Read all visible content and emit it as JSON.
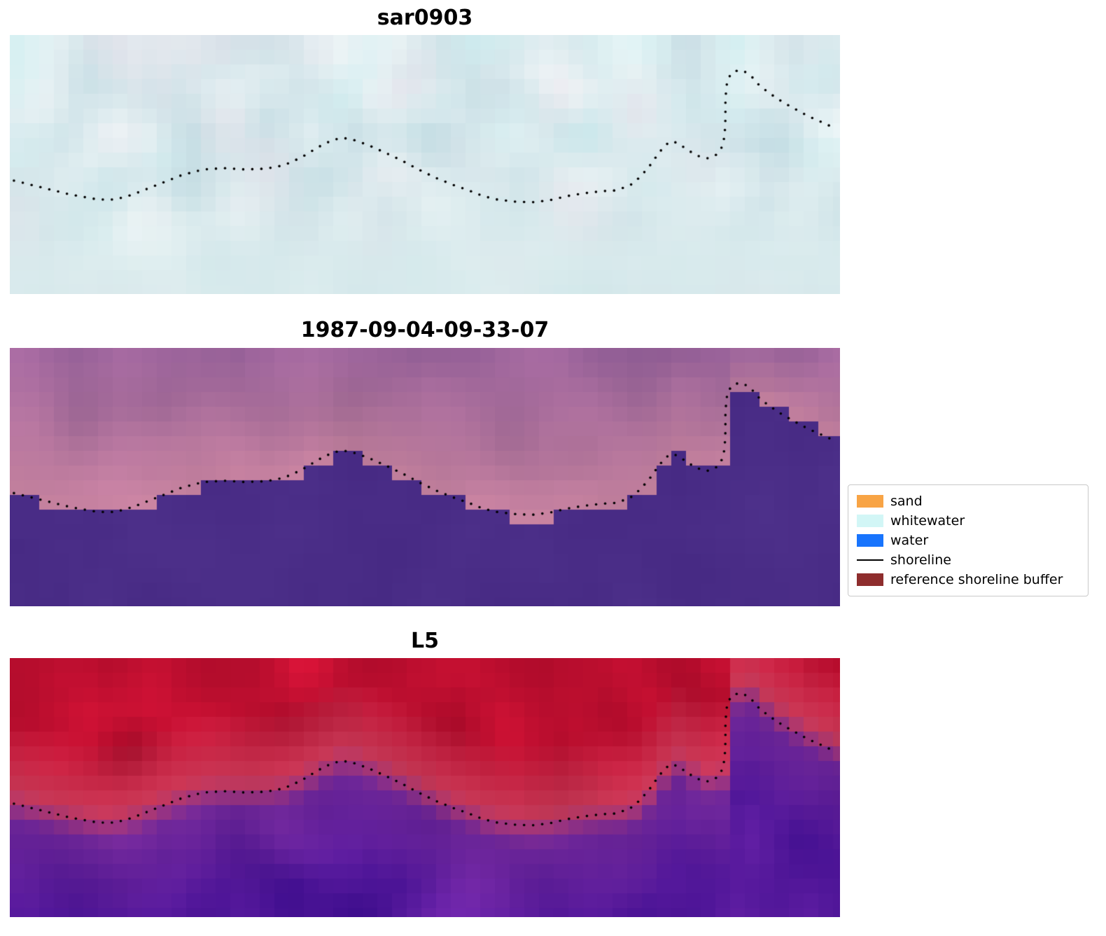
{
  "panels": [
    {
      "title": "sar0903"
    },
    {
      "title": "1987-09-04-09-33-07"
    },
    {
      "title": "L5"
    }
  ],
  "legend": {
    "items": [
      {
        "label": "sand",
        "color": "#f8a445",
        "kind": "patch"
      },
      {
        "label": "whitewater",
        "color": "#d2f6f6",
        "kind": "patch"
      },
      {
        "label": "water",
        "color": "#1874fd",
        "kind": "patch"
      },
      {
        "label": "shoreline",
        "color": "#000000",
        "kind": "line"
      },
      {
        "label": "reference shoreline buffer",
        "color": "#8e2d2d",
        "kind": "patch"
      }
    ]
  },
  "chart_data": {
    "type": "heatmap",
    "title": "",
    "panels": [
      {
        "title": "sar0903",
        "kind": "sar_image",
        "appearance": "pale blue-white pixelated backscatter image with dotted shoreline overlay"
      },
      {
        "title": "1987-09-04-09-33-07",
        "kind": "classified_image",
        "appearance": "dark purple water mask below mauve-pink land with dotted shoreline along stepped boundary"
      },
      {
        "title": "L5",
        "kind": "landsat5_image",
        "appearance": "crimson land fading through pink to deep purple water with dotted shoreline along transition"
      }
    ],
    "legend_entries": [
      "sand",
      "whitewater",
      "water",
      "shoreline",
      "reference shoreline buffer"
    ],
    "shoreline_points_norm": [
      [
        0.005,
        0.562
      ],
      [
        0.039,
        0.589
      ],
      [
        0.073,
        0.616
      ],
      [
        0.106,
        0.635
      ],
      [
        0.127,
        0.635
      ],
      [
        0.148,
        0.616
      ],
      [
        0.182,
        0.573
      ],
      [
        0.207,
        0.541
      ],
      [
        0.233,
        0.519
      ],
      [
        0.258,
        0.514
      ],
      [
        0.283,
        0.519
      ],
      [
        0.309,
        0.516
      ],
      [
        0.33,
        0.503
      ],
      [
        0.351,
        0.473
      ],
      [
        0.372,
        0.432
      ],
      [
        0.389,
        0.405
      ],
      [
        0.401,
        0.397
      ],
      [
        0.414,
        0.405
      ],
      [
        0.431,
        0.424
      ],
      [
        0.452,
        0.454
      ],
      [
        0.473,
        0.486
      ],
      [
        0.494,
        0.522
      ],
      [
        0.515,
        0.554
      ],
      [
        0.536,
        0.581
      ],
      [
        0.553,
        0.6
      ],
      [
        0.57,
        0.622
      ],
      [
        0.587,
        0.635
      ],
      [
        0.608,
        0.643
      ],
      [
        0.629,
        0.646
      ],
      [
        0.65,
        0.638
      ],
      [
        0.671,
        0.622
      ],
      [
        0.692,
        0.611
      ],
      [
        0.713,
        0.603
      ],
      [
        0.73,
        0.6
      ],
      [
        0.747,
        0.581
      ],
      [
        0.76,
        0.546
      ],
      [
        0.772,
        0.5
      ],
      [
        0.781,
        0.459
      ],
      [
        0.789,
        0.427
      ],
      [
        0.796,
        0.411
      ],
      [
        0.804,
        0.416
      ],
      [
        0.814,
        0.438
      ],
      [
        0.827,
        0.465
      ],
      [
        0.84,
        0.476
      ],
      [
        0.85,
        0.465
      ],
      [
        0.857,
        0.438
      ],
      [
        0.861,
        0.392
      ],
      [
        0.862,
        0.324
      ],
      [
        0.862,
        0.257
      ],
      [
        0.863,
        0.203
      ],
      [
        0.865,
        0.168
      ],
      [
        0.871,
        0.143
      ],
      [
        0.879,
        0.135
      ],
      [
        0.886,
        0.143
      ],
      [
        0.894,
        0.162
      ],
      [
        0.903,
        0.195
      ],
      [
        0.916,
        0.227
      ],
      [
        0.931,
        0.259
      ],
      [
        0.946,
        0.286
      ],
      [
        0.962,
        0.314
      ],
      [
        0.977,
        0.335
      ],
      [
        0.99,
        0.354
      ]
    ],
    "palette": {
      "sar": {
        "base": "#c3dce3",
        "white": "#ffffff",
        "cyan": "#cdeef0",
        "pink": "#e8d9e6",
        "flat": "#d7eaec"
      },
      "classified": {
        "water": "#4a2d87",
        "land_top": "#9a639b",
        "land_low": "#c6829f"
      },
      "l5": {
        "red_dark": "#a50a28",
        "red": "#d81438",
        "pink": "#d8738c",
        "plum": "#9a3f96",
        "purple": "#7026ad",
        "purple_dark": "#3f0e8e"
      }
    },
    "pixel_block_size_px": 21,
    "panel_size_px": [
      1186,
      370
    ]
  }
}
